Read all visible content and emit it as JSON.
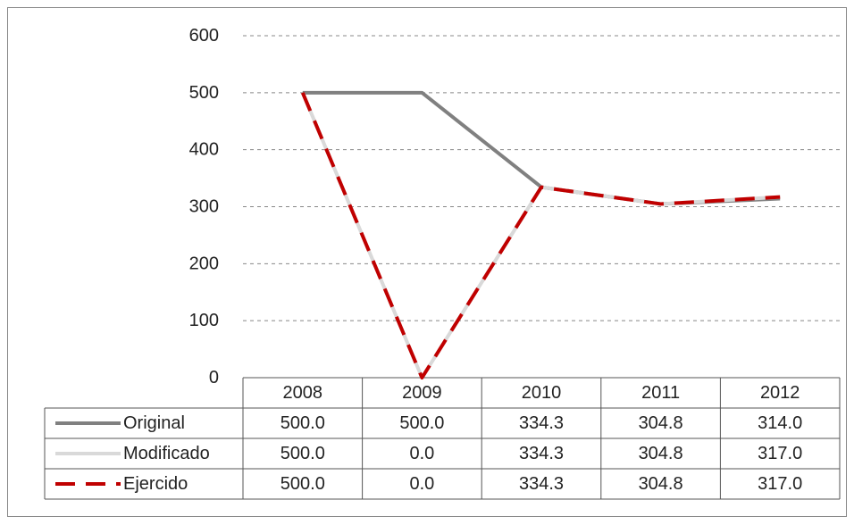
{
  "chart_data": {
    "type": "line",
    "categories": [
      "2008",
      "2009",
      "2010",
      "2011",
      "2012"
    ],
    "series": [
      {
        "name": "Original",
        "color": "#808080",
        "dash": false,
        "values": [
          500,
          500,
          334.3,
          304.8,
          314
        ],
        "value_labels": [
          "500.0",
          "500.0",
          "334.3",
          "304.8",
          "314.0"
        ]
      },
      {
        "name": "Modificado",
        "color": "#d9d9d9",
        "dash": false,
        "values": [
          500,
          0,
          334.3,
          304.8,
          317
        ],
        "value_labels": [
          "500.0",
          "0.0",
          "334.3",
          "304.8",
          "317.0"
        ]
      },
      {
        "name": "Ejercido",
        "color": "#c00000",
        "dash": true,
        "values": [
          500,
          0,
          334.3,
          304.8,
          317
        ],
        "value_labels": [
          "500.0",
          "0.0",
          "334.3",
          "304.8",
          "317.0"
        ]
      }
    ],
    "ylim": [
      0,
      600
    ],
    "yticks": [
      0,
      100,
      200,
      300,
      400,
      500,
      600
    ],
    "grid": true,
    "legend": "table"
  }
}
